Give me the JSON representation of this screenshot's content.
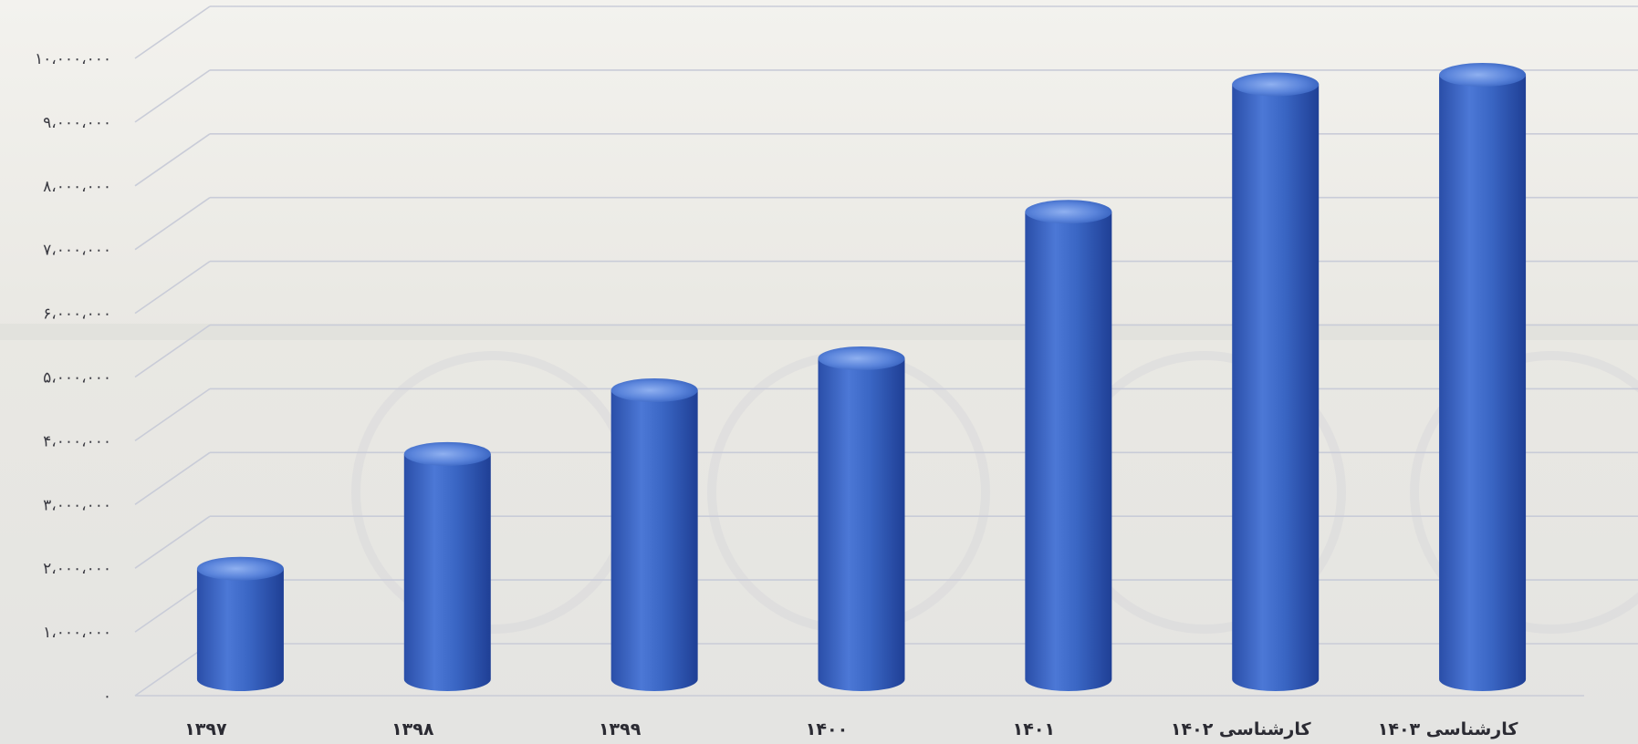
{
  "chart_data": {
    "type": "bar",
    "title": "",
    "xlabel": "",
    "ylabel": "",
    "categories": [
      "۱۳۹۷",
      "۱۳۹۸",
      "۱۳۹۹",
      "۱۴۰۰",
      "۱۴۰۱",
      "کارشناسی ۱۴۰۲",
      "کارشناسی ۱۴۰۳"
    ],
    "values": [
      1650000,
      3450000,
      4450000,
      4950000,
      7250000,
      9250000,
      9400000
    ],
    "ylim": [
      0,
      10000000
    ],
    "yticks": [
      0,
      1000000,
      2000000,
      3000000,
      4000000,
      5000000,
      6000000,
      7000000,
      8000000,
      9000000,
      10000000
    ],
    "ytick_labels": [
      "۰",
      "۱،۰۰۰،۰۰۰",
      "۲،۰۰۰،۰۰۰",
      "۳،۰۰۰،۰۰۰",
      "۴،۰۰۰،۰۰۰",
      "۵،۰۰۰،۰۰۰",
      "۶،۰۰۰،۰۰۰",
      "۷،۰۰۰،۰۰۰",
      "۸،۰۰۰،۰۰۰",
      "۹،۰۰۰،۰۰۰",
      "۱۰،۰۰۰،۰۰۰"
    ],
    "grid": true,
    "legend": "none",
    "bar_style": "3d-cylinder",
    "colors": {
      "bar": "#3a66c4",
      "bar_dark": "#1f3f95",
      "bar_light": "#6f95e6",
      "grid": "#c9ccd8",
      "background": "#ecebe6"
    }
  }
}
